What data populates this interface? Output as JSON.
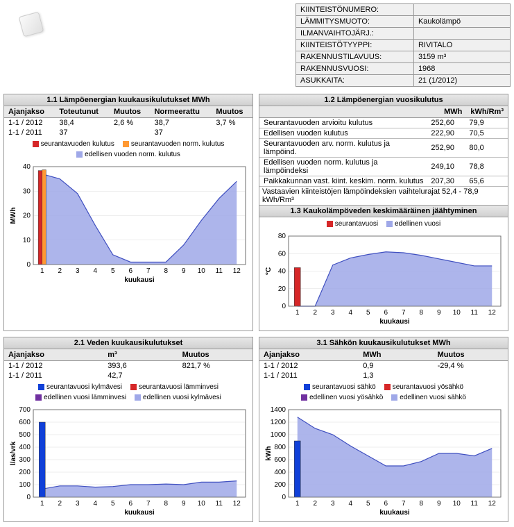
{
  "info": {
    "rows": [
      {
        "label": "KIINTEISTÖNUMERO:",
        "value": ""
      },
      {
        "label": "LÄMMITYSMUOTO:",
        "value": "Kaukolämpö"
      },
      {
        "label": "ILMANVAIHTOJÄRJ.:",
        "value": ""
      },
      {
        "label": "KIINTEISTÖTYYPPI:",
        "value": "RIVITALO"
      },
      {
        "label": "RAKENNUSTILAVUUS:",
        "value": "3159 m³"
      },
      {
        "label": "RAKENNUSVUOSI:",
        "value": "1968"
      },
      {
        "label": "ASUKKAITA:",
        "value": "21 (1/2012)"
      }
    ]
  },
  "panel11": {
    "title": "1.1 Lämpöenergian kuukausikulutukset MWh",
    "headers": [
      "Ajanjakso",
      "Toteutunut",
      "Muutos",
      "Normeerattu",
      "Muutos"
    ],
    "rows": [
      [
        "1-1 / 2012",
        "38,4",
        "2,6 %",
        "38,7",
        "3,7 %"
      ],
      [
        "1-1 / 2011",
        "37",
        "",
        "37",
        ""
      ]
    ],
    "legend": [
      {
        "color": "#d62728",
        "label": "seurantavuoden kulutus"
      },
      {
        "color": "#ff9933",
        "label": "seurantavuoden norm. kulutus"
      },
      {
        "color": "#9fa8e8",
        "label": "edellisen vuoden norm. kulutus"
      }
    ],
    "chart": {
      "type": "bar+area",
      "x_axis": "kuukausi",
      "y_axis": "MWh",
      "xlim": [
        0.5,
        12.5
      ],
      "ylim": [
        0,
        40
      ],
      "ytick_step": 10,
      "bars": [
        {
          "x": 1,
          "values": [
            38.4,
            38.7
          ],
          "colors": [
            "#d62728",
            "#ff9933"
          ],
          "width": 0.22
        }
      ],
      "area": {
        "color": "#9fa8e8",
        "stroke": "#4050c0",
        "values": [
          37,
          35,
          29,
          16,
          4,
          1,
          1,
          1,
          8,
          18,
          27,
          34
        ]
      }
    }
  },
  "panel12": {
    "title": "1.2 Lämpöenergian vuosikulutus",
    "col_headers": [
      "",
      "MWh",
      "kWh/Rm³"
    ],
    "rows": [
      [
        "Seurantavuoden arvioitu kulutus",
        "252,60",
        "79,9"
      ],
      [
        "Edellisen vuoden kulutus",
        "222,90",
        "70,5"
      ],
      [
        "Seurantavuoden arv. norm. kulutus ja lämpöind.",
        "252,90",
        "80,0"
      ],
      [
        "Edellisen vuoden norm. kulutus ja lämpöindeksi",
        "249,10",
        "78,8"
      ],
      [
        "Paikkakunnan vast. kiint. keskim. norm. kulutus",
        "207,30",
        "65,6"
      ],
      [
        "Vastaavien kiinteistöjen lämpöindeksien vaihtelurajat 52,4 - 78,9 kWh/Rm³",
        "",
        ""
      ]
    ]
  },
  "panel13": {
    "title": "1.3 Kaukolämpöveden keskimääräinen jäähtyminen",
    "legend": [
      {
        "color": "#d62728",
        "label": "seurantavuosi"
      },
      {
        "color": "#9fa8e8",
        "label": "edellinen vuosi"
      }
    ],
    "chart": {
      "type": "bar+area",
      "x_axis": "kuukausi",
      "y_axis": "°C",
      "xlim": [
        0.5,
        12.5
      ],
      "ylim": [
        0,
        80
      ],
      "ytick_step": 20,
      "bars": [
        {
          "x": 1,
          "values": [
            44
          ],
          "colors": [
            "#d62728"
          ],
          "width": 0.35
        }
      ],
      "area": {
        "color": "#9fa8e8",
        "stroke": "#4050c0",
        "values": [
          0,
          0,
          47,
          55,
          59,
          62,
          61,
          58,
          54,
          50,
          46,
          46
        ]
      }
    }
  },
  "panel21": {
    "title": "2.1 Veden kuukausikulutukset",
    "headers": [
      "Ajanjakso",
      "m³",
      "Muutos"
    ],
    "rows": [
      [
        "1-1 / 2012",
        "393,6",
        "821,7 %"
      ],
      [
        "1-1 / 2011",
        "42,7",
        ""
      ]
    ],
    "legend": [
      {
        "color": "#1040d8",
        "label": "seurantavuosi kylmävesi"
      },
      {
        "color": "#d62728",
        "label": "seurantavuosi lämminvesi"
      },
      {
        "color": "#7030a0",
        "label": "edellinen vuosi lämminvesi"
      },
      {
        "color": "#9fa8e8",
        "label": "edellinen vuosi kylmävesi"
      }
    ],
    "chart": {
      "type": "bar+area",
      "x_axis": "kuukausi",
      "y_axis": "l/as/vrk",
      "xlim": [
        0.5,
        12.5
      ],
      "ylim": [
        0,
        700
      ],
      "ytick_step": 100,
      "bars": [
        {
          "x": 1,
          "values": [
            600
          ],
          "colors": [
            "#1040d8"
          ],
          "width": 0.35
        }
      ],
      "area": {
        "color": "#9fa8e8",
        "stroke": "#4050c0",
        "values": [
          65,
          90,
          90,
          80,
          85,
          100,
          100,
          105,
          100,
          120,
          120,
          130
        ]
      }
    }
  },
  "panel31": {
    "title": "3.1 Sähkön kuukausikulutukset MWh",
    "headers": [
      "Ajanjakso",
      "MWh",
      "Muutos"
    ],
    "rows": [
      [
        "1-1 / 2012",
        "0,9",
        "-29,4 %"
      ],
      [
        "1-1 / 2011",
        "1,3",
        ""
      ]
    ],
    "legend": [
      {
        "color": "#1040d8",
        "label": "seurantavuosi sähkö"
      },
      {
        "color": "#d62728",
        "label": "seurantavuosi yösähkö"
      },
      {
        "color": "#7030a0",
        "label": "edellinen vuosi yösähkö"
      },
      {
        "color": "#9fa8e8",
        "label": "edellinen vuosi sähkö"
      }
    ],
    "chart": {
      "type": "bar+area",
      "x_axis": "kuukausi",
      "y_axis": "kWh",
      "xlim": [
        0.5,
        12.5
      ],
      "ylim": [
        0,
        1400
      ],
      "ytick_step": 200,
      "bars": [
        {
          "x": 1,
          "values": [
            900
          ],
          "colors": [
            "#1040d8"
          ],
          "width": 0.35
        }
      ],
      "area": {
        "color": "#9fa8e8",
        "stroke": "#4050c0",
        "values": [
          1280,
          1100,
          1000,
          820,
          660,
          500,
          500,
          570,
          700,
          700,
          660,
          780
        ]
      }
    }
  }
}
